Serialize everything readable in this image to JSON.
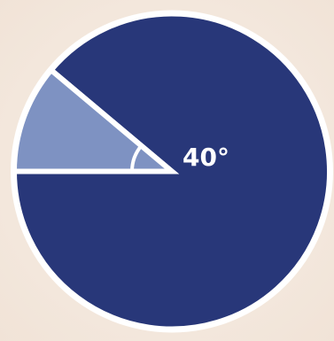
{
  "chart_data": {
    "type": "pie",
    "slices": [
      {
        "value": 320
      },
      {
        "value": 40
      }
    ],
    "annotations": [
      {
        "text": "40°"
      }
    ],
    "colors": {
      "major": "#283779",
      "minor": "#7e92c2",
      "stroke": "#ffffff",
      "angle_label": "#ffffff"
    }
  }
}
